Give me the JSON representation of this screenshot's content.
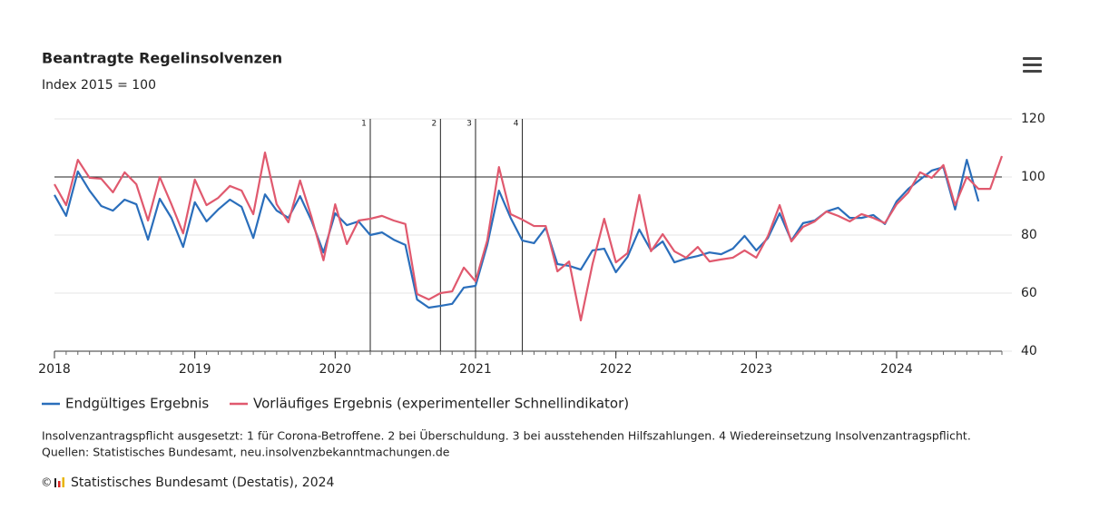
{
  "chart_data": {
    "type": "line",
    "title": "Beantragte Regelinsolvenzen",
    "subtitle": "Index 2015 = 100",
    "x": [
      "2018-01",
      "2018-02",
      "2018-03",
      "2018-04",
      "2018-05",
      "2018-06",
      "2018-07",
      "2018-08",
      "2018-09",
      "2018-10",
      "2018-11",
      "2018-12",
      "2019-01",
      "2019-02",
      "2019-03",
      "2019-04",
      "2019-05",
      "2019-06",
      "2019-07",
      "2019-08",
      "2019-09",
      "2019-10",
      "2019-11",
      "2019-12",
      "2020-01",
      "2020-02",
      "2020-03",
      "2020-04",
      "2020-05",
      "2020-06",
      "2020-07",
      "2020-08",
      "2020-09",
      "2020-10",
      "2020-11",
      "2020-12",
      "2021-01",
      "2021-02",
      "2021-03",
      "2021-04",
      "2021-05",
      "2021-06",
      "2021-07",
      "2021-08",
      "2021-09",
      "2021-10",
      "2021-11",
      "2021-12",
      "2022-01",
      "2022-02",
      "2022-03",
      "2022-04",
      "2022-05",
      "2022-06",
      "2022-07",
      "2022-08",
      "2022-09",
      "2022-10",
      "2022-11",
      "2022-12",
      "2023-01",
      "2023-02",
      "2023-03",
      "2023-04",
      "2023-05",
      "2023-06",
      "2023-07",
      "2023-08",
      "2023-09",
      "2023-10",
      "2023-11",
      "2023-12",
      "2024-01",
      "2024-02",
      "2024-03",
      "2024-04",
      "2024-05",
      "2024-06",
      "2024-07",
      "2024-08",
      "2024-09",
      "2024-10"
    ],
    "series": [
      {
        "name": "Endgültiges Ergebnis",
        "color": "#2a6ebb",
        "values": [
          93.8,
          86.6,
          101.9,
          95.3,
          90,
          88.4,
          92.2,
          90.6,
          78.4,
          92.5,
          85.9,
          75.9,
          91.3,
          84.7,
          88.8,
          92.2,
          89.7,
          79,
          94,
          88.4,
          85.9,
          93.4,
          84.7,
          74,
          87.5,
          83.4,
          84.7,
          80,
          80.9,
          78.4,
          76.6,
          57.8,
          55,
          55.6,
          56.3,
          61.9,
          62.5,
          76.6,
          95.3,
          85.9,
          78.1,
          77.2,
          82.5,
          70,
          69.4,
          68.1,
          74.7,
          75.3,
          67.2,
          72.5,
          81.9,
          74.7,
          77.8,
          70.6,
          71.9,
          72.8,
          74,
          73.4,
          75.3,
          79.7,
          74.7,
          79,
          87.5,
          78.1,
          84.1,
          85,
          88.1,
          89.4,
          85.9,
          85.9,
          86.9,
          83.8,
          91.6,
          95.9,
          99.1,
          102.2,
          103.4,
          88.8,
          105.9,
          91.6,
          null,
          null
        ]
      },
      {
        "name": "Vorläufiges Ergebnis (experimenteller Schnellindikator)",
        "color": "#e0596e",
        "values": [
          97.5,
          90.3,
          105.9,
          99.7,
          99.4,
          94.7,
          101.6,
          97.5,
          85,
          100,
          90.6,
          80.6,
          99.1,
          90.3,
          92.8,
          96.9,
          95.3,
          87.2,
          108.4,
          90.6,
          84.4,
          98.8,
          85.9,
          71.3,
          90.6,
          76.9,
          85,
          85.6,
          86.6,
          85,
          83.8,
          59.7,
          57.8,
          60,
          60.6,
          68.8,
          64.1,
          78.1,
          103.4,
          87.2,
          85.3,
          83.1,
          83.1,
          67.5,
          70.9,
          50.6,
          70,
          85.6,
          70.6,
          73.8,
          93.8,
          74.4,
          80.3,
          74.4,
          72.2,
          75.9,
          70.9,
          71.6,
          72.2,
          74.7,
          72.2,
          79.7,
          90.3,
          77.8,
          82.8,
          84.7,
          88.1,
          86.6,
          84.7,
          87.2,
          85.9,
          84.1,
          90.6,
          94.7,
          101.6,
          99.7,
          104.1,
          90.3,
          100,
          95.9,
          95.9,
          107.2
        ]
      }
    ],
    "xlim": [
      "2018-01",
      "2024-10"
    ],
    "xticks": [
      {
        "value": "2018-01",
        "label": "2018"
      },
      {
        "value": "2019-01",
        "label": "2019"
      },
      {
        "value": "2020-01",
        "label": "2020"
      },
      {
        "value": "2021-01",
        "label": "2021"
      },
      {
        "value": "2022-01",
        "label": "2022"
      },
      {
        "value": "2023-01",
        "label": "2023"
      },
      {
        "value": "2024-01",
        "label": "2024"
      }
    ],
    "ylim": [
      40,
      120
    ],
    "yticks": [
      40,
      60,
      80,
      100,
      120
    ],
    "grid": true,
    "reference_line": 100,
    "annotations": [
      {
        "x": "2020-04",
        "label": "1"
      },
      {
        "x": "2020-10",
        "label": "2"
      },
      {
        "x": "2021-01",
        "label": "3"
      },
      {
        "x": "2021-05",
        "label": "4"
      }
    ],
    "legend": "bottom-left",
    "note": "Insolvenzantragspflicht ausgesetzt: 1 für Corona-Betroffene. 2 bei Überschuldung. 3 bei ausstehenden Hilfszahlungen. 4 Wiedereinsetzung Insolvenzantragspflicht.",
    "source": "Quellen: Statistisches Bundesamt, neu.insolvenzbekanntmachungen.de",
    "copyright_symbol": "©",
    "copyright": "Statistisches Bundesamt (Destatis), 2024"
  }
}
